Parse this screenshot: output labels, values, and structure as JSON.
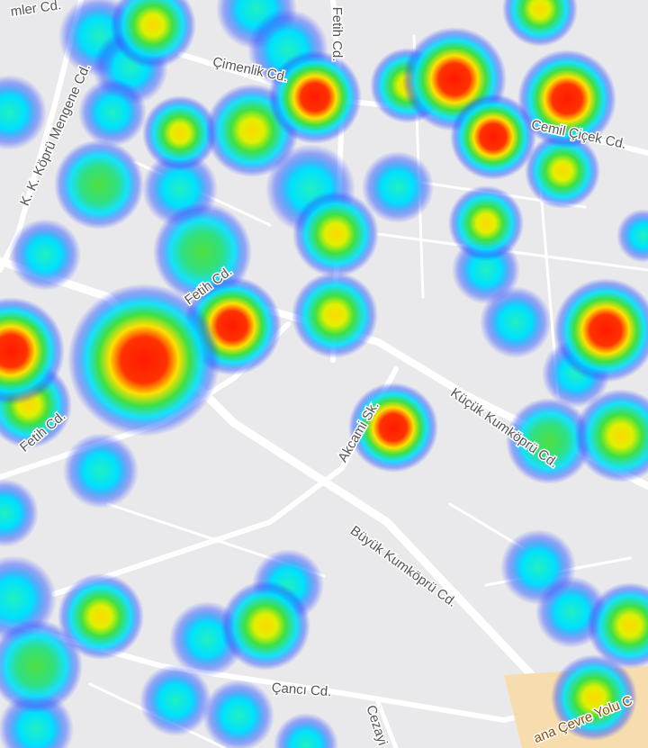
{
  "map": {
    "street_labels": [
      "mler Cd.",
      "Fetih Cd.",
      "Çimenlik Cd.",
      "K. K. Köprü Mengene Cd.",
      "Cemil Çiçek Cd.",
      "Fetih Cd.",
      "Fetih Cd.",
      "Akcami Sk.",
      "Küçük Kumköprü Cd.",
      "Büyük Kumköprü Cd.",
      "Çancı Cd.",
      "Cezayi",
      "ana Çevre Yolu C"
    ]
  }
}
